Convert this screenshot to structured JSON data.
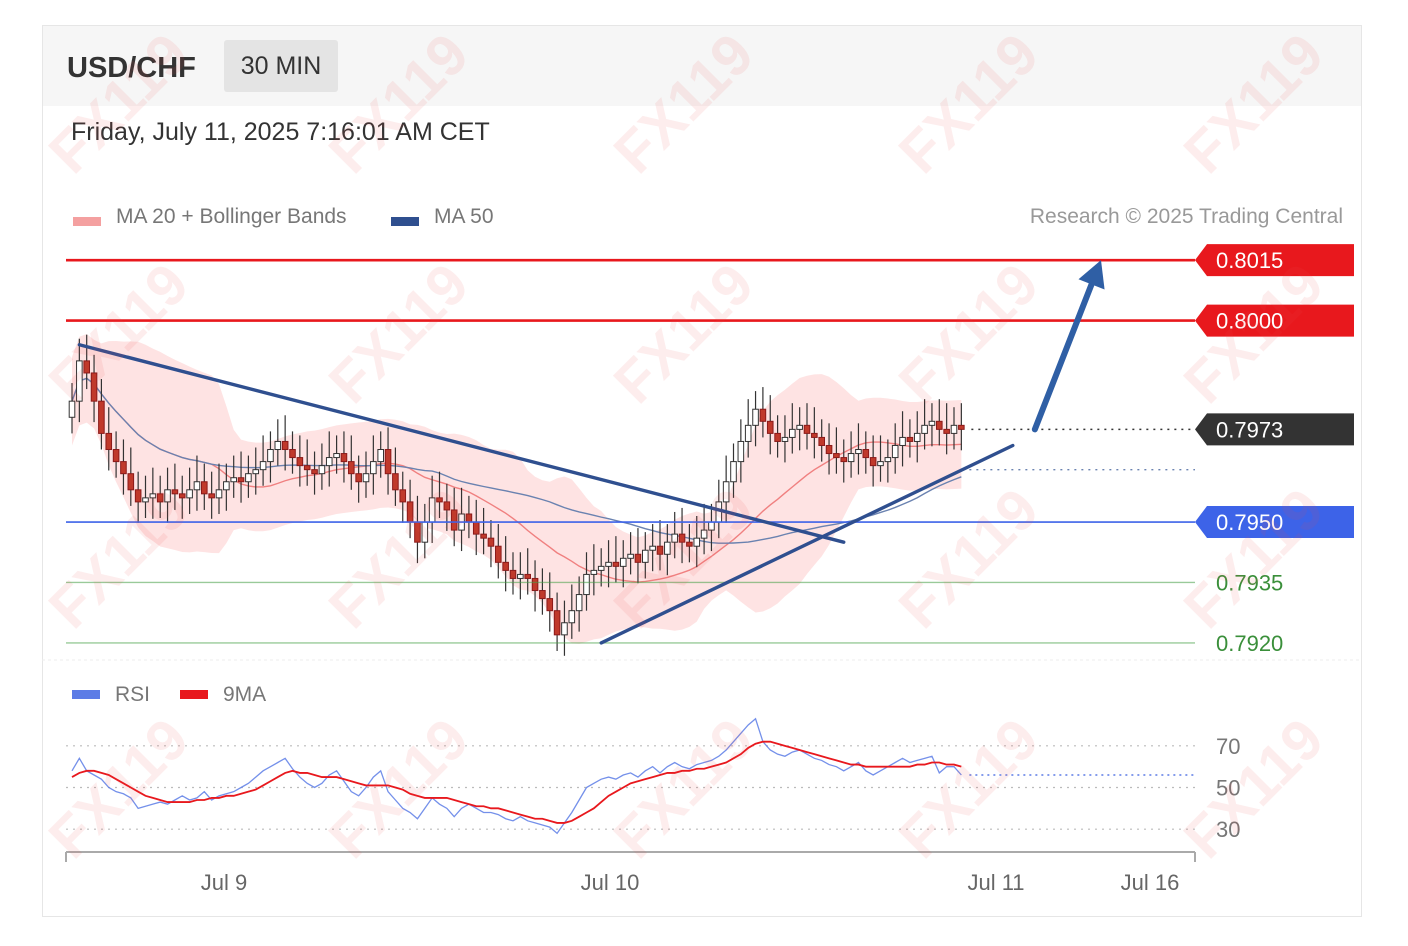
{
  "header": {
    "pair": "USD/CHF",
    "timeframe": "30 MIN"
  },
  "timestamp": "Friday, July 11, 2025 7:16:01 AM CET",
  "legend": {
    "ma20_bb": "MA 20 + Bollinger Bands",
    "ma50": "MA 50",
    "rsi": "RSI",
    "rsi_ma": "9MA"
  },
  "credit": "Research © 2025 Trading Central",
  "watermark": "FX119",
  "colors": {
    "resistance": "#e8181d",
    "support_main": "#3d63e8",
    "support": "#46a046",
    "last": "#333333",
    "trendline": "#2f4f8f",
    "ma20": "#f08080",
    "bands": "#fdd9d9",
    "ma50": "#6a82b0",
    "rsi": "#5c7ce6",
    "rsi_ma": "#e8181d"
  },
  "chart_data": [
    {
      "type": "candlestick",
      "ylim": [
        0.7917,
        0.802
      ],
      "x_ticks": [
        "Jul 9",
        "Jul 10",
        "Jul 11",
        "Jul 16"
      ],
      "levels": [
        {
          "value": 0.8015,
          "label": "0.8015",
          "kind": "resistance"
        },
        {
          "value": 0.8,
          "label": "0.8000",
          "kind": "resistance"
        },
        {
          "value": 0.7973,
          "label": "0.7973",
          "kind": "last"
        },
        {
          "value": 0.795,
          "label": "0.7950",
          "kind": "support_main"
        },
        {
          "value": 0.7935,
          "label": "0.7935",
          "kind": "support"
        },
        {
          "value": 0.792,
          "label": "0.7920",
          "kind": "support"
        }
      ],
      "trendlines": [
        {
          "from": [
            1,
            0.7994
          ],
          "to": [
            105,
            0.7945
          ]
        },
        {
          "from": [
            72,
            0.792
          ],
          "to": [
            128,
            0.7969
          ]
        }
      ],
      "forecast_arrow": {
        "from": [
          131,
          0.7973
        ],
        "to": [
          140,
          0.8015
        ]
      },
      "ma50_projection": 0.7963,
      "closes": [
        0.798,
        0.799,
        0.7987,
        0.798,
        0.7972,
        0.7968,
        0.7965,
        0.7962,
        0.7958,
        0.7955,
        0.7956,
        0.7957,
        0.7955,
        0.7958,
        0.7957,
        0.7956,
        0.7958,
        0.796,
        0.7957,
        0.7956,
        0.7958,
        0.796,
        0.7961,
        0.796,
        0.7962,
        0.7963,
        0.7965,
        0.7968,
        0.797,
        0.7968,
        0.7966,
        0.7964,
        0.7963,
        0.7962,
        0.7964,
        0.7966,
        0.7967,
        0.7965,
        0.7962,
        0.796,
        0.7962,
        0.7965,
        0.7968,
        0.7962,
        0.7958,
        0.7955,
        0.795,
        0.7945,
        0.795,
        0.7956,
        0.7955,
        0.7953,
        0.7948,
        0.7952,
        0.795,
        0.7947,
        0.7946,
        0.7944,
        0.794,
        0.7938,
        0.7936,
        0.7937,
        0.7936,
        0.7933,
        0.7931,
        0.7928,
        0.7922,
        0.7925,
        0.7928,
        0.7932,
        0.7937,
        0.7938,
        0.7939,
        0.794,
        0.7939,
        0.7941,
        0.7942,
        0.794,
        0.7943,
        0.7944,
        0.7942,
        0.7945,
        0.7947,
        0.7945,
        0.7944,
        0.7946,
        0.7948,
        0.795,
        0.7955,
        0.796,
        0.7965,
        0.797,
        0.7974,
        0.7978,
        0.7975,
        0.7972,
        0.797,
        0.7971,
        0.7973,
        0.7974,
        0.7972,
        0.7971,
        0.7969,
        0.7967,
        0.7966,
        0.7965,
        0.7967,
        0.7968,
        0.7966,
        0.7964,
        0.7965,
        0.7966,
        0.7969,
        0.7971,
        0.797,
        0.7972,
        0.7974,
        0.7975,
        0.7973,
        0.7972,
        0.7974,
        0.7973
      ]
    },
    {
      "type": "line",
      "ylim": [
        20,
        80
      ],
      "y_ticks": [
        70,
        50,
        30
      ],
      "series": [
        {
          "name": "RSI",
          "values": [
            58,
            64,
            58,
            56,
            54,
            50,
            48,
            47,
            45,
            40,
            41,
            42,
            43,
            42,
            44,
            46,
            44,
            45,
            48,
            44,
            46,
            47,
            48,
            50,
            52,
            55,
            58,
            60,
            62,
            64,
            59,
            55,
            52,
            50,
            52,
            56,
            58,
            53,
            48,
            46,
            50,
            55,
            58,
            48,
            44,
            40,
            38,
            35,
            40,
            45,
            42,
            40,
            36,
            40,
            42,
            40,
            38,
            38,
            37,
            35,
            34,
            36,
            34,
            33,
            32,
            31,
            28,
            33,
            38,
            44,
            50,
            52,
            54,
            55,
            54,
            56,
            57,
            55,
            58,
            60,
            57,
            60,
            62,
            60,
            59,
            61,
            62,
            63,
            65,
            68,
            72,
            76,
            80,
            83,
            72,
            68,
            66,
            65,
            67,
            68,
            66,
            64,
            63,
            61,
            60,
            58,
            60,
            62,
            58,
            56,
            58,
            60,
            62,
            64,
            62,
            63,
            64,
            65,
            57,
            60,
            60,
            56
          ]
        },
        {
          "name": "9MA",
          "values": [
            55,
            57,
            58,
            58,
            57,
            56,
            54,
            52,
            50,
            48,
            46,
            45,
            44,
            43,
            43,
            43,
            43,
            44,
            44,
            45,
            45,
            46,
            46,
            47,
            48,
            49,
            51,
            53,
            55,
            57,
            58,
            57,
            57,
            56,
            55,
            55,
            55,
            54,
            53,
            52,
            51,
            51,
            51,
            51,
            50,
            49,
            47,
            46,
            45,
            45,
            45,
            45,
            44,
            43,
            42,
            41,
            41,
            40,
            40,
            39,
            38,
            37,
            36,
            35,
            35,
            34,
            33,
            33,
            34,
            36,
            38,
            40,
            43,
            46,
            48,
            50,
            52,
            53,
            54,
            55,
            56,
            57,
            57,
            58,
            58,
            59,
            59,
            60,
            61,
            62,
            64,
            66,
            69,
            71,
            72,
            72,
            71,
            70,
            69,
            68,
            67,
            66,
            65,
            64,
            63,
            62,
            61,
            61,
            60,
            60,
            60,
            60,
            60,
            60,
            60,
            61,
            61,
            62,
            62,
            61,
            61,
            60
          ]
        }
      ]
    }
  ]
}
